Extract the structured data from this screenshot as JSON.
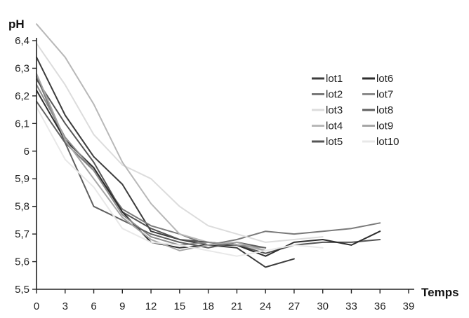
{
  "chart_data": {
    "type": "line",
    "title": "",
    "xlabel": "Temps",
    "ylabel": "pH",
    "xlim": [
      0,
      39
    ],
    "ylim": [
      5.5,
      6.4
    ],
    "xticks": [
      0,
      3,
      6,
      9,
      12,
      15,
      18,
      21,
      24,
      27,
      30,
      33,
      36,
      39
    ],
    "xtick_labels": [
      "0",
      "3",
      "6",
      "9",
      "12",
      "15",
      "18",
      "21",
      "24",
      "27",
      "30",
      "33",
      "36",
      "39"
    ],
    "yticks": [
      5.5,
      5.6,
      5.7,
      5.8,
      5.9,
      6.0,
      6.1,
      6.2,
      6.3,
      6.4
    ],
    "ytick_labels": [
      "5,5",
      "5,6",
      "5,7",
      "5,8",
      "5,9",
      "6",
      "6,1",
      "6,2",
      "6,3",
      "6,4"
    ],
    "grid": false,
    "legend_position": "right, two columns",
    "series": [
      {
        "name": "lot1",
        "color": "#3c3c3c",
        "x": [
          0,
          3,
          6,
          9,
          12,
          15,
          18,
          21,
          24,
          27
        ],
        "values": [
          6.34,
          6.13,
          5.98,
          5.88,
          5.71,
          5.68,
          5.66,
          5.65,
          5.58,
          5.61
        ]
      },
      {
        "name": "lot2",
        "color": "#7a7a7a",
        "x": [
          0,
          3,
          6,
          9,
          12,
          15,
          18,
          21,
          24,
          27,
          30,
          33,
          36
        ],
        "values": [
          6.27,
          6.03,
          5.93,
          5.79,
          5.73,
          5.7,
          5.66,
          5.68,
          5.71,
          5.7,
          5.71,
          5.72,
          5.74
        ]
      },
      {
        "name": "lot3",
        "color": "#dcdcdc",
        "x": [
          0,
          3,
          6,
          9,
          12,
          15,
          18,
          21,
          24,
          27,
          30
        ],
        "values": [
          6.39,
          6.24,
          6.06,
          5.95,
          5.9,
          5.8,
          5.73,
          5.7,
          5.67,
          5.68,
          5.69
        ]
      },
      {
        "name": "lot4",
        "color": "#b8b8b8",
        "x": [
          0,
          3,
          6,
          9,
          12,
          15,
          18,
          21,
          24
        ],
        "values": [
          6.46,
          6.34,
          6.17,
          5.96,
          5.81,
          5.7,
          5.67,
          5.66,
          5.64
        ]
      },
      {
        "name": "lot5",
        "color": "#555555",
        "x": [
          0,
          3,
          6,
          9,
          12,
          15,
          18,
          21,
          24,
          27,
          30,
          33,
          36
        ],
        "values": [
          6.26,
          6.1,
          5.96,
          5.78,
          5.72,
          5.68,
          5.67,
          5.66,
          5.63,
          5.66,
          5.67,
          5.67,
          5.68
        ]
      },
      {
        "name": "lot6",
        "color": "#2e2e2e",
        "x": [
          0,
          3,
          6,
          9,
          12,
          15,
          18,
          21,
          24,
          27,
          30,
          33,
          36
        ],
        "values": [
          6.22,
          6.04,
          5.94,
          5.78,
          5.67,
          5.65,
          5.66,
          5.66,
          5.62,
          5.67,
          5.68,
          5.66,
          5.71
        ]
      },
      {
        "name": "lot7",
        "color": "#8c8c8c",
        "x": [
          0,
          3,
          6,
          9,
          12,
          15,
          18,
          21,
          24
        ],
        "values": [
          6.24,
          6.05,
          5.93,
          5.77,
          5.69,
          5.66,
          5.67,
          5.66,
          5.65
        ]
      },
      {
        "name": "lot8",
        "color": "#606060",
        "x": [
          0,
          3,
          6,
          9,
          12,
          15,
          18,
          21,
          24
        ],
        "values": [
          6.18,
          6.03,
          5.8,
          5.75,
          5.7,
          5.67,
          5.65,
          5.67,
          5.65
        ]
      },
      {
        "name": "lot9",
        "color": "#a6a6a6",
        "x": [
          0,
          3,
          6,
          9,
          12,
          15,
          18,
          21,
          24
        ],
        "values": [
          6.28,
          6.04,
          5.9,
          5.76,
          5.68,
          5.64,
          5.66,
          5.67,
          5.64
        ]
      },
      {
        "name": "lot10",
        "color": "#e8e8e8",
        "x": [
          0,
          3,
          6,
          9,
          12,
          15,
          18,
          21,
          24,
          27,
          30
        ],
        "values": [
          6.16,
          5.97,
          5.87,
          5.72,
          5.67,
          5.66,
          5.64,
          5.62,
          5.64,
          5.66,
          5.65
        ]
      }
    ]
  }
}
